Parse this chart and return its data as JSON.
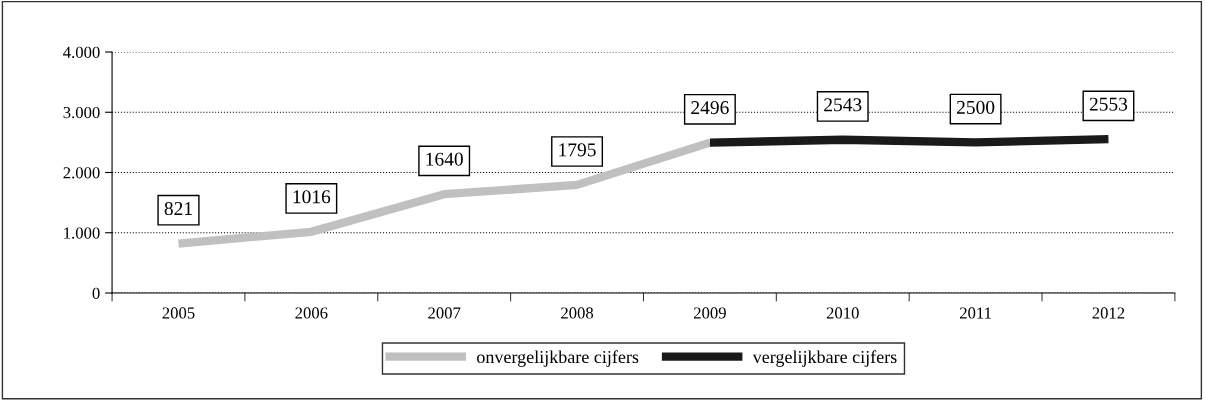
{
  "chart_data": {
    "type": "line",
    "categories": [
      "2005",
      "2006",
      "2007",
      "2008",
      "2009",
      "2010",
      "2011",
      "2012"
    ],
    "series": [
      {
        "name": "onvergelijkbare cijfers",
        "color": "#c0c0c0",
        "values": [
          821,
          1016,
          1640,
          1795,
          2496,
          null,
          null,
          null
        ],
        "value_labels": [
          "821",
          "1016",
          "1640",
          "1795",
          "2496",
          null,
          null,
          null
        ]
      },
      {
        "name": "vergelijkbare cijfers",
        "color": "#1a1a1a",
        "values": [
          null,
          null,
          null,
          null,
          2496,
          2543,
          2500,
          2553
        ],
        "value_labels": [
          null,
          null,
          null,
          null,
          null,
          "2543",
          "2500",
          "2553"
        ]
      }
    ],
    "ylim": [
      0,
      4000
    ],
    "yticks": [
      0,
      {
        "value": 1000,
        "label": "1.000"
      },
      {
        "value": 2000,
        "label": "2.000"
      },
      {
        "value": 3000,
        "label": "3.000"
      },
      {
        "value": 4000,
        "label": "4.000"
      }
    ],
    "grid": "y",
    "legend": "bottom",
    "marker": "none",
    "line_style": "solid"
  }
}
